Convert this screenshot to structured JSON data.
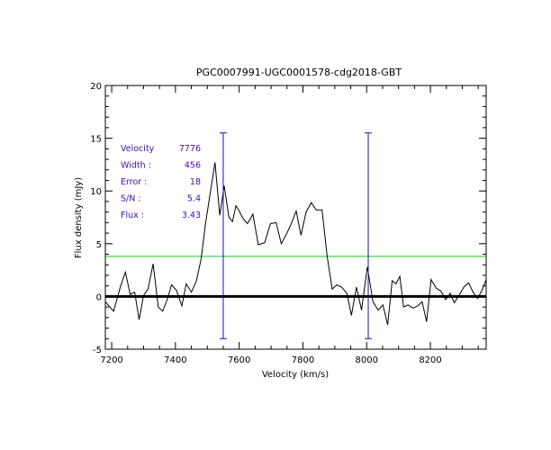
{
  "chart_data": {
    "type": "line",
    "title": "PGC0007991-UGC0001578-cdg2018-GBT",
    "xlabel": "Velocity (km/s)",
    "ylabel": "Flux density (mJy)",
    "xlim": [
      7180,
      8375
    ],
    "ylim": [
      -5,
      20
    ],
    "xticks": [
      7200,
      7400,
      7600,
      7800,
      8000,
      8200
    ],
    "yticks": [
      -5,
      0,
      5,
      10,
      15,
      20
    ],
    "grid": false,
    "colors": {
      "spectrum": "#000000",
      "markers": "#1a10b8",
      "level": "#22c022",
      "zero": "#000000",
      "annotation": "#3a0fb0"
    },
    "series": [
      {
        "x": [
          7180,
          7206,
          7228,
          7243,
          7258,
          7272,
          7286,
          7300,
          7314,
          7330,
          7346,
          7360,
          7374,
          7388,
          7403,
          7420,
          7434,
          7450,
          7466,
          7481,
          7494,
          7509,
          7524,
          7539,
          7553,
          7568,
          7579,
          7590,
          7600,
          7612,
          7626,
          7643,
          7660,
          7680,
          7698,
          7716,
          7732,
          7748,
          7762,
          7779,
          7794,
          7810,
          7826,
          7842,
          7860,
          7876,
          7892,
          7906,
          7921,
          7938,
          7952,
          7968,
          7984,
          8002,
          8020,
          8036,
          8051,
          8066,
          8080,
          8092,
          8104,
          8116,
          8130,
          8145,
          8160,
          8174,
          8188,
          8202,
          8218,
          8233,
          8248,
          8262,
          8275,
          8290,
          8305,
          8320,
          8334,
          8348,
          8362,
          8375
        ],
        "y": [
          -0.5,
          -1.4,
          1.0,
          2.3,
          0.2,
          0.4,
          -2.2,
          0.1,
          0.7,
          3.1,
          -1.0,
          -1.4,
          -0.3,
          1.1,
          0.6,
          -0.9,
          1.2,
          0.4,
          1.5,
          3.6,
          6.8,
          9.8,
          12.7,
          7.7,
          10.5,
          7.5,
          7.1,
          8.6,
          8.1,
          7.4,
          6.9,
          7.8,
          4.9,
          5.1,
          6.9,
          7.0,
          5.0,
          5.9,
          6.8,
          8.1,
          5.8,
          8.0,
          8.9,
          8.2,
          8.2,
          3.8,
          0.7,
          1.1,
          0.9,
          0.3,
          -1.8,
          0.9,
          -1.3,
          2.8,
          -0.5,
          -1.3,
          -0.8,
          -2.7,
          1.5,
          1.2,
          1.9,
          -1.0,
          -0.8,
          -1.1,
          -0.9,
          -0.5,
          -2.4,
          1.6,
          0.8,
          0.5,
          -0.3,
          0.3,
          -0.6,
          0.1,
          0.9,
          1.3,
          0.4,
          -0.2,
          0.6,
          1.6
        ]
      }
    ],
    "velocity_markers": [
      7550,
      8005
    ],
    "marker_extent": [
      -4,
      15.5
    ],
    "level_line": 3.8,
    "zero_line": 0,
    "annotations": [
      {
        "label": "Velocity",
        "value": "7776"
      },
      {
        "label": "Width  :",
        "value": "456"
      },
      {
        "label": "Error  :",
        "value": "18"
      },
      {
        "label": "S/N    :",
        "value": "5.4"
      },
      {
        "label": "Flux   :",
        "value": "3.43"
      }
    ]
  }
}
